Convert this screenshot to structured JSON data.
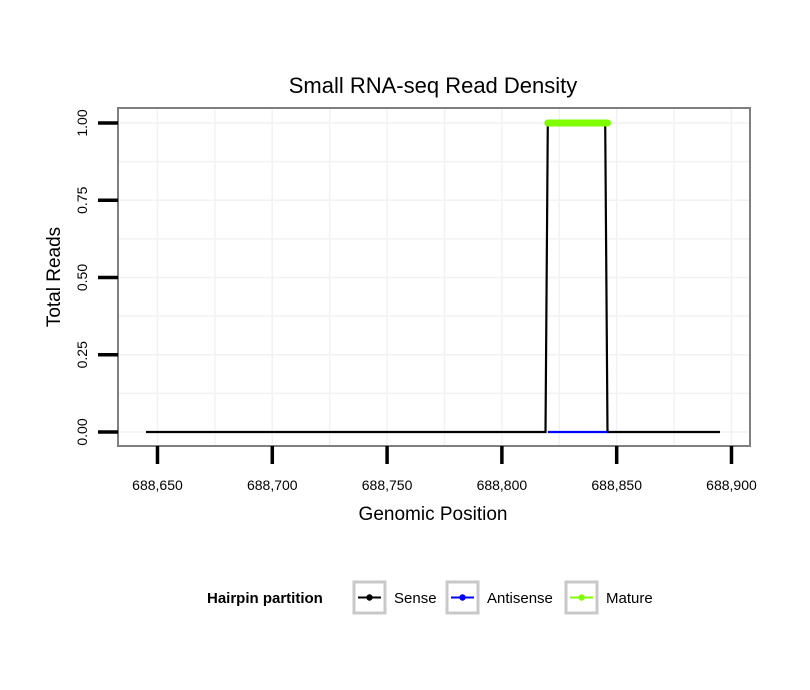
{
  "chart_data": {
    "type": "line",
    "title": "Small RNA-seq Read Density",
    "xlabel": "Genomic Position",
    "ylabel": "Total Reads",
    "xlim": [
      688645,
      688895
    ],
    "ylim": [
      0,
      1
    ],
    "x_ticks": [
      688650,
      688700,
      688750,
      688800,
      688850,
      688900
    ],
    "x_tick_labels": [
      "688,650",
      "688,700",
      "688,750",
      "688,800",
      "688,850",
      "688,900"
    ],
    "y_ticks": [
      0,
      0.25,
      0.5,
      0.75,
      1
    ],
    "y_tick_labels": [
      "0.00",
      "0.25",
      "0.50",
      "0.75",
      "1.00"
    ],
    "grid": true,
    "legend": {
      "title": "Hairpin partition",
      "position": "bottom",
      "entries": [
        {
          "name": "Sense",
          "color": "#000000"
        },
        {
          "name": "Antisense",
          "color": "#0000ff"
        },
        {
          "name": "Mature",
          "color": "#7fff00"
        }
      ]
    },
    "series": [
      {
        "name": "Sense",
        "color": "#000000",
        "x": [
          688645,
          688819,
          688820,
          688845,
          688846,
          688895
        ],
        "values": [
          0,
          0,
          1,
          1,
          0,
          0
        ]
      },
      {
        "name": "Antisense",
        "color": "#0000ff",
        "x": [
          688820,
          688846
        ],
        "values": [
          0,
          0
        ]
      },
      {
        "name": "Mature",
        "color": "#7fff00",
        "x": [
          688820,
          688846
        ],
        "values": [
          1,
          1
        ]
      }
    ]
  }
}
